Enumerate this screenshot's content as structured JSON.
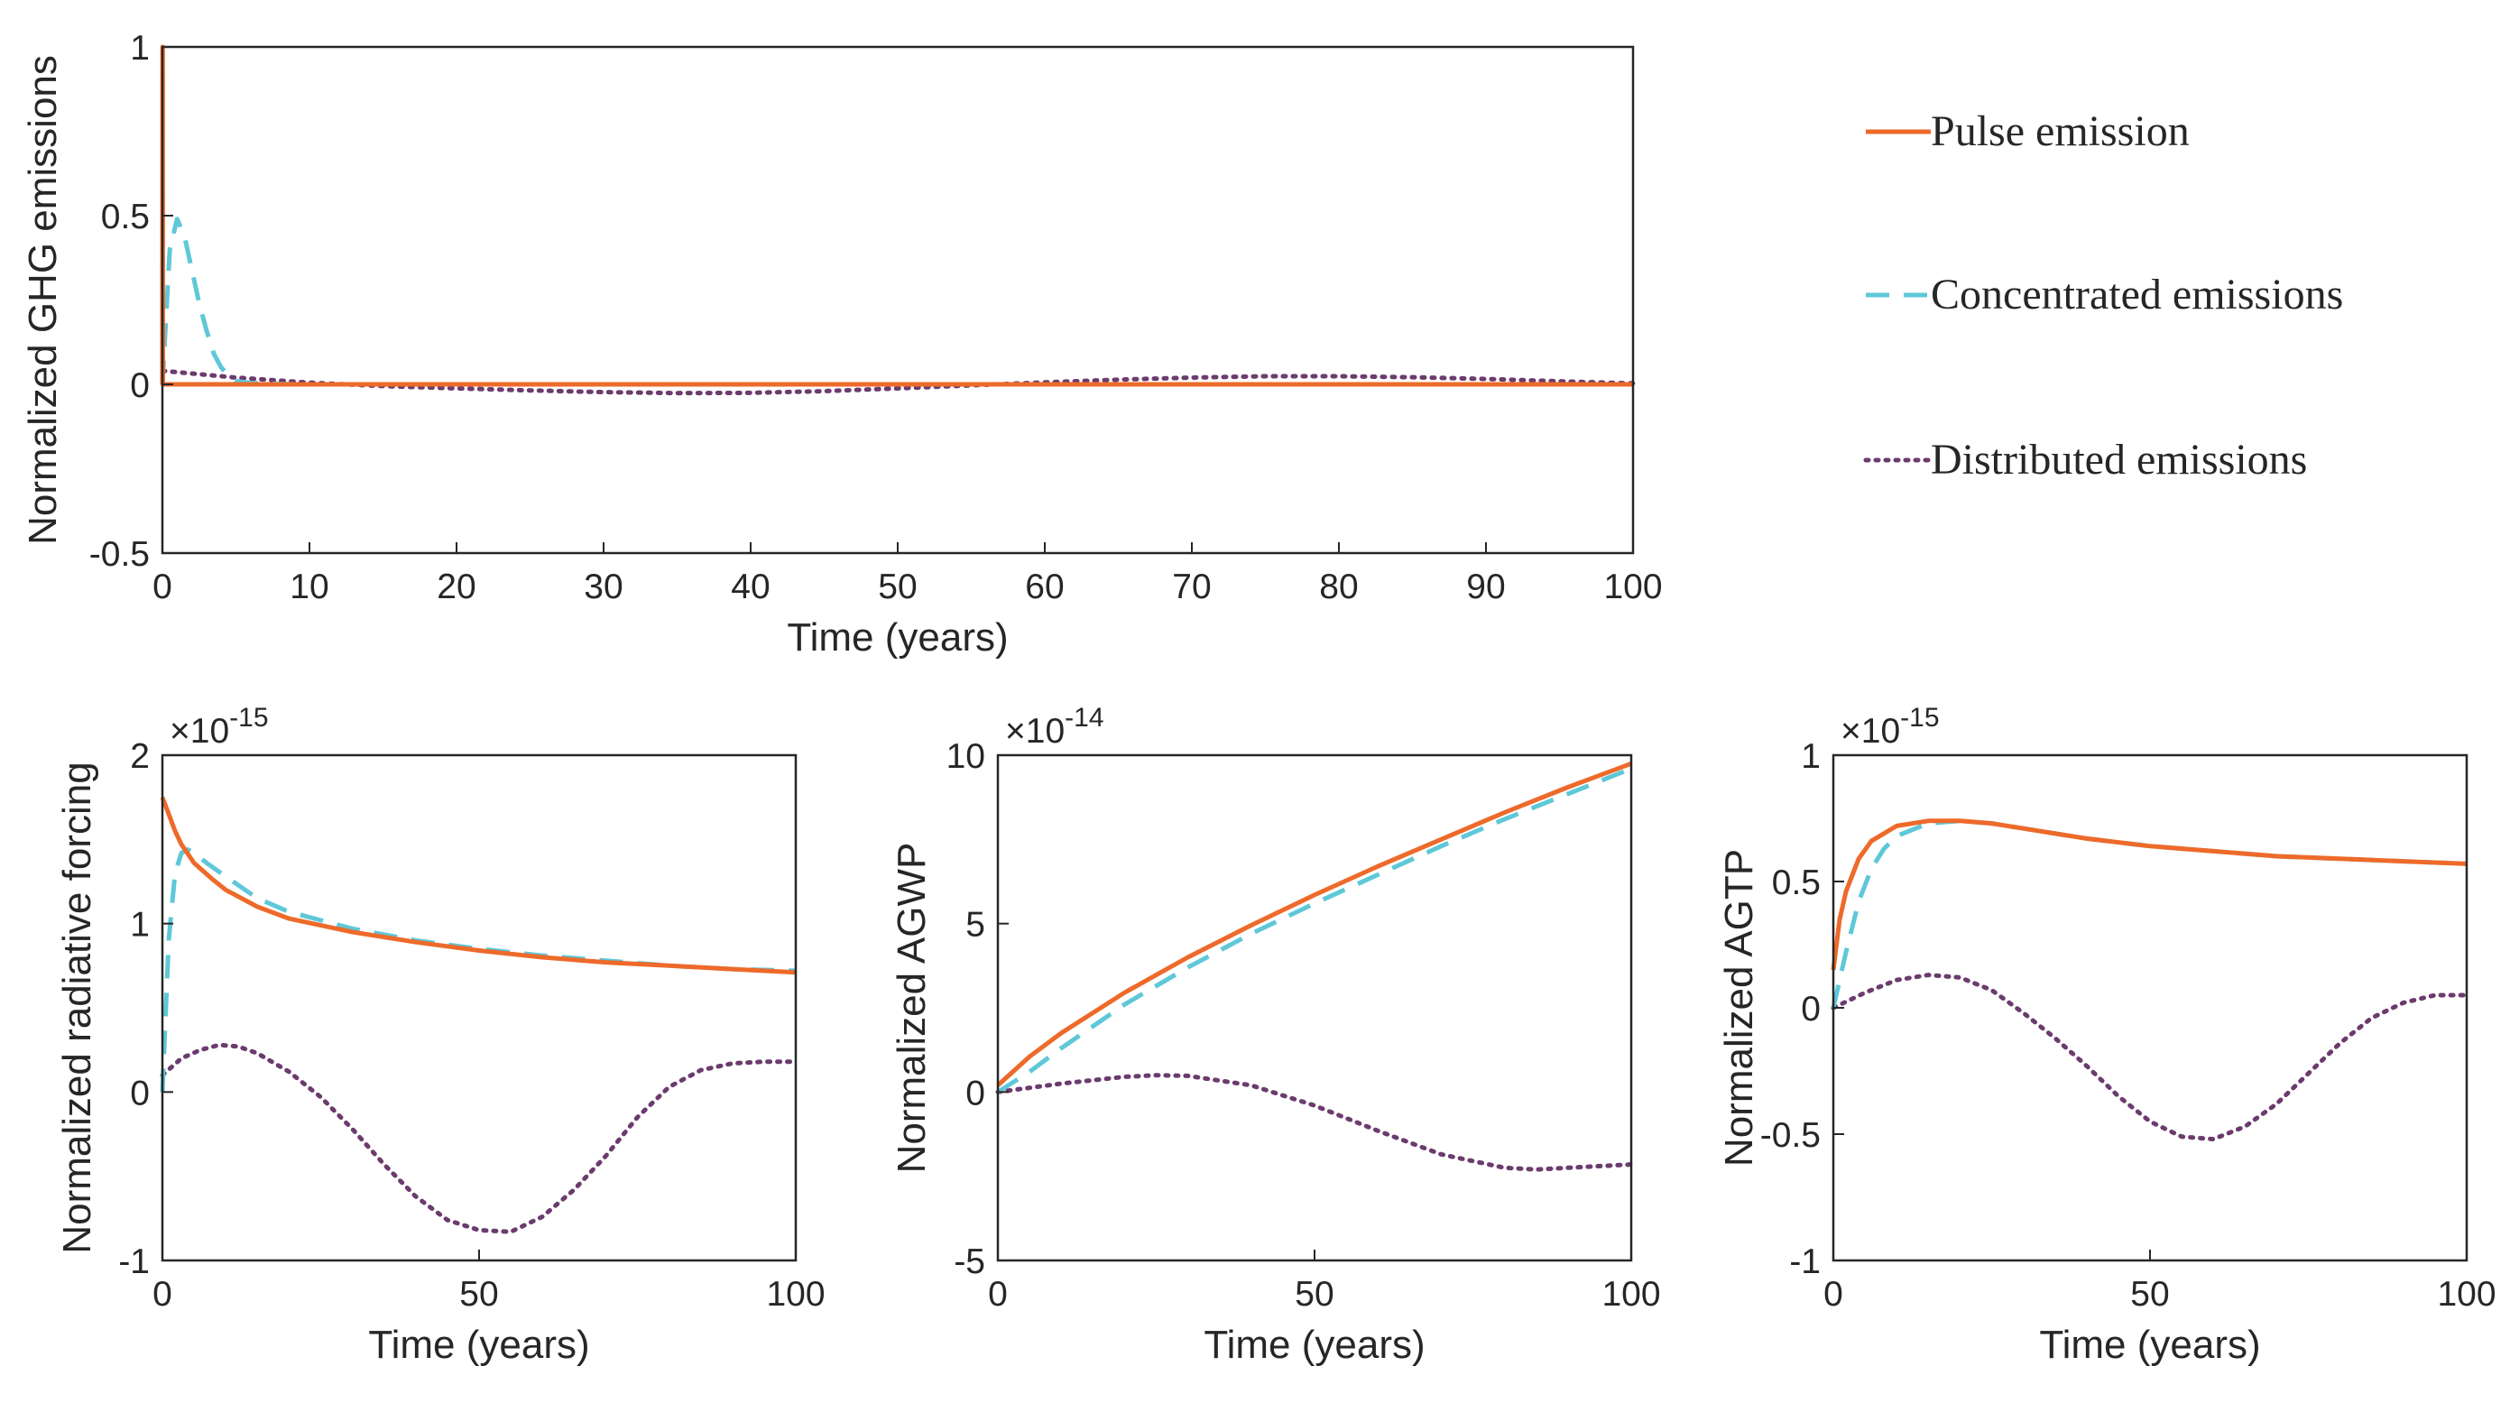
{
  "colors": {
    "pulse": "#ee6a2a",
    "concentrated": "#5ec8d8",
    "distributed": "#6b3b6e",
    "axis": "#262626"
  },
  "legend": {
    "entries": [
      {
        "series": "pulse",
        "label": "Pulse emission",
        "style": "solid"
      },
      {
        "series": "concentrated",
        "label": "Concentrated emissions",
        "style": "dashed"
      },
      {
        "series": "distributed",
        "label": "Distributed emissions",
        "style": "dotted"
      }
    ]
  },
  "chart_data": [
    {
      "id": "emissions",
      "type": "line",
      "xlabel": "Time (years)",
      "ylabel": "Normalized GHG emissions",
      "xlim": [
        0,
        100
      ],
      "ylim": [
        -0.5,
        1
      ],
      "xticks": [
        0,
        10,
        20,
        30,
        40,
        50,
        60,
        70,
        80,
        90,
        100
      ],
      "yticks": [
        -0.5,
        0,
        0.5,
        1
      ],
      "ytick_labels": [
        "-0.5",
        "0",
        "0.5",
        "1"
      ],
      "exponent": "",
      "zero_line": true,
      "series": [
        {
          "name": "pulse",
          "x": [
            0,
            0.01,
            0.02,
            0.03,
            100
          ],
          "y": [
            0,
            1,
            1,
            0,
            0
          ]
        },
        {
          "name": "concentrated",
          "x": [
            0,
            0.5,
            1,
            1.5,
            2,
            2.5,
            3,
            3.5,
            4,
            4.5,
            5,
            6,
            8,
            10,
            20,
            30,
            40,
            50,
            60,
            70,
            80,
            90,
            100
          ],
          "y": [
            0,
            0.4,
            0.49,
            0.44,
            0.34,
            0.24,
            0.16,
            0.09,
            0.05,
            0.025,
            0.01,
            0.004,
            0.001,
            0,
            0,
            0,
            0,
            0,
            0,
            0,
            0,
            0,
            0
          ]
        },
        {
          "name": "distributed",
          "x": [
            0,
            5,
            10,
            15,
            20,
            25,
            30,
            35,
            40,
            45,
            50,
            55,
            60,
            65,
            70,
            75,
            80,
            85,
            90,
            95,
            100
          ],
          "y": [
            0.04,
            0.02,
            0.005,
            -0.005,
            -0.012,
            -0.018,
            -0.023,
            -0.026,
            -0.025,
            -0.02,
            -0.012,
            -0.003,
            0.006,
            0.014,
            0.02,
            0.024,
            0.024,
            0.021,
            0.016,
            0.009,
            0.003
          ]
        }
      ]
    },
    {
      "id": "forcing",
      "type": "line",
      "xlabel": "Time (years)",
      "ylabel": "Normalized radiative forcing",
      "xlim": [
        0,
        100
      ],
      "ylim": [
        -1,
        2
      ],
      "xticks": [
        0,
        50,
        100
      ],
      "yticks": [
        -1,
        0,
        1,
        2
      ],
      "ytick_labels": [
        "-1",
        "0",
        "1",
        "2"
      ],
      "exponent": "-15",
      "zero_line": false,
      "series": [
        {
          "name": "pulse",
          "x": [
            0,
            1,
            2,
            3,
            5,
            8,
            10,
            15,
            20,
            30,
            40,
            50,
            60,
            70,
            80,
            90,
            100
          ],
          "y": [
            1.75,
            1.65,
            1.55,
            1.47,
            1.36,
            1.26,
            1.2,
            1.1,
            1.03,
            0.95,
            0.89,
            0.84,
            0.8,
            0.77,
            0.75,
            0.73,
            0.71
          ]
        },
        {
          "name": "concentrated",
          "x": [
            0,
            1,
            2,
            3,
            4,
            5,
            7,
            10,
            15,
            20,
            30,
            40,
            50,
            60,
            70,
            80,
            90,
            100
          ],
          "y": [
            0,
            0.9,
            1.3,
            1.42,
            1.44,
            1.42,
            1.36,
            1.28,
            1.15,
            1.07,
            0.97,
            0.9,
            0.85,
            0.81,
            0.78,
            0.75,
            0.73,
            0.72
          ]
        },
        {
          "name": "distributed",
          "x": [
            0,
            3,
            6,
            9,
            12,
            15,
            20,
            25,
            30,
            35,
            40,
            45,
            50,
            55,
            60,
            65,
            70,
            75,
            80,
            85,
            90,
            95,
            100
          ],
          "y": [
            0.1,
            0.2,
            0.25,
            0.28,
            0.27,
            0.23,
            0.12,
            -0.03,
            -0.22,
            -0.43,
            -0.62,
            -0.76,
            -0.82,
            -0.83,
            -0.74,
            -0.58,
            -0.38,
            -0.15,
            0.03,
            0.13,
            0.17,
            0.18,
            0.18
          ]
        }
      ]
    },
    {
      "id": "agwp",
      "type": "line",
      "xlabel": "Time (years)",
      "ylabel": "Normalized AGWP",
      "xlim": [
        0,
        100
      ],
      "ylim": [
        -5,
        10
      ],
      "xticks": [
        0,
        50,
        100
      ],
      "yticks": [
        -5,
        0,
        5,
        10
      ],
      "ytick_labels": [
        "-5",
        "0",
        "5",
        "10"
      ],
      "exponent": "-14",
      "zero_line": false,
      "series": [
        {
          "name": "pulse",
          "x": [
            0,
            5,
            10,
            20,
            30,
            40,
            50,
            60,
            70,
            80,
            90,
            100
          ],
          "y": [
            0.2,
            1.05,
            1.75,
            2.95,
            4.0,
            4.95,
            5.85,
            6.7,
            7.5,
            8.3,
            9.05,
            9.75
          ]
        },
        {
          "name": "concentrated",
          "x": [
            0,
            5,
            10,
            20,
            30,
            40,
            50,
            60,
            70,
            80,
            90,
            100
          ],
          "y": [
            0,
            0.6,
            1.3,
            2.6,
            3.7,
            4.7,
            5.6,
            6.45,
            7.3,
            8.1,
            8.85,
            9.6
          ]
        },
        {
          "name": "distributed",
          "x": [
            0,
            10,
            20,
            25,
            30,
            40,
            50,
            60,
            70,
            80,
            85,
            90,
            100
          ],
          "y": [
            0,
            0.25,
            0.45,
            0.5,
            0.48,
            0.2,
            -0.4,
            -1.15,
            -1.85,
            -2.25,
            -2.3,
            -2.25,
            -2.15
          ]
        }
      ]
    },
    {
      "id": "agtp",
      "type": "line",
      "xlabel": "Time (years)",
      "ylabel": "Normalized AGTP",
      "xlim": [
        0,
        100
      ],
      "ylim": [
        -1,
        1
      ],
      "xticks": [
        0,
        50,
        100
      ],
      "yticks": [
        -1,
        -0.5,
        0,
        0.5,
        1
      ],
      "ytick_labels": [
        "-1",
        "-0.5",
        "0",
        "0.5",
        "1"
      ],
      "exponent": "-15",
      "zero_line": false,
      "series": [
        {
          "name": "pulse",
          "x": [
            0,
            1,
            2,
            4,
            6,
            10,
            15,
            20,
            25,
            30,
            40,
            50,
            60,
            70,
            80,
            90,
            100
          ],
          "y": [
            0.15,
            0.35,
            0.46,
            0.59,
            0.66,
            0.72,
            0.74,
            0.74,
            0.73,
            0.71,
            0.67,
            0.64,
            0.62,
            0.6,
            0.59,
            0.58,
            0.57
          ]
        },
        {
          "name": "concentrated",
          "x": [
            0,
            2,
            4,
            6,
            8,
            10,
            15,
            20,
            25,
            30,
            40,
            50,
            60,
            70,
            80,
            90,
            100
          ],
          "y": [
            0,
            0.22,
            0.42,
            0.55,
            0.63,
            0.68,
            0.73,
            0.74,
            0.73,
            0.71,
            0.67,
            0.64,
            0.62,
            0.6,
            0.59,
            0.58,
            0.57
          ]
        },
        {
          "name": "distributed",
          "x": [
            0,
            5,
            10,
            15,
            20,
            25,
            30,
            35,
            40,
            45,
            50,
            55,
            60,
            65,
            70,
            75,
            80,
            85,
            90,
            95,
            100
          ],
          "y": [
            0,
            0.06,
            0.11,
            0.13,
            0.12,
            0.07,
            -0.02,
            -0.12,
            -0.23,
            -0.35,
            -0.45,
            -0.51,
            -0.52,
            -0.47,
            -0.38,
            -0.26,
            -0.14,
            -0.04,
            0.02,
            0.05,
            0.05
          ]
        }
      ]
    }
  ]
}
